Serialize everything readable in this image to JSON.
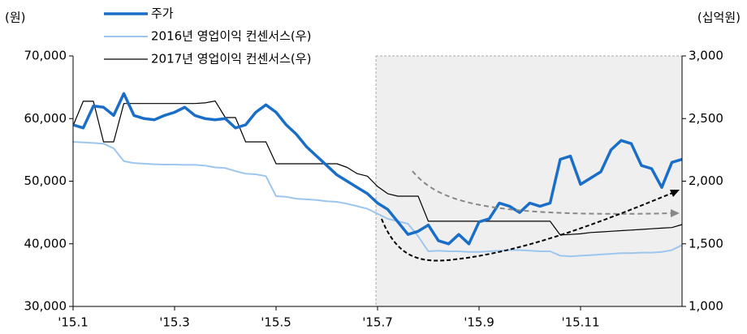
{
  "chart_data": {
    "type": "line",
    "y_unit": "(원)",
    "y2_unit": "(십억원)",
    "categories": [
      "'15.1",
      null,
      null,
      null,
      null,
      null,
      null,
      null,
      null,
      null,
      "'15.3",
      null,
      null,
      null,
      null,
      null,
      null,
      null,
      null,
      null,
      "'15.5",
      null,
      null,
      null,
      null,
      null,
      null,
      null,
      null,
      null,
      "'15.7",
      null,
      null,
      null,
      null,
      null,
      null,
      null,
      null,
      null,
      "'15.9",
      null,
      null,
      null,
      null,
      null,
      null,
      null,
      null,
      null,
      "'15.11",
      null,
      null,
      null,
      null,
      null,
      null,
      null,
      null,
      null,
      null
    ],
    "series": [
      {
        "name": "주가",
        "color": "#1a6ec8",
        "axis": "y",
        "values": [
          59000,
          58500,
          62000,
          61800,
          60500,
          64000,
          60500,
          60000,
          59800,
          60500,
          61000,
          61800,
          60500,
          60000,
          59800,
          60000,
          58500,
          59000,
          61000,
          62200,
          61000,
          59000,
          57500,
          55500,
          54000,
          52500,
          51000,
          50000,
          49000,
          48000,
          46500,
          45500,
          43500,
          41500,
          42000,
          43000,
          40500,
          40000,
          41500,
          40000,
          43500,
          44000,
          46500,
          46000,
          45000,
          46500,
          46000,
          46500,
          53500,
          54000,
          49500,
          50500,
          51500,
          55000,
          56500,
          56000,
          52500,
          52000,
          49000,
          53000,
          53500
        ]
      },
      {
        "name": "2016년 영업이익 컨센서스(우)",
        "color": "#9dc6ee",
        "axis": "y2",
        "values": [
          2314,
          2310,
          2305,
          2300,
          2262,
          2160,
          2145,
          2140,
          2135,
          2133,
          2133,
          2130,
          2130,
          2125,
          2110,
          2105,
          2080,
          2060,
          2055,
          2040,
          1880,
          1875,
          1860,
          1855,
          1850,
          1840,
          1835,
          1820,
          1800,
          1780,
          1740,
          1700,
          1680,
          1660,
          1560,
          1440,
          1445,
          1440,
          1440,
          1435,
          1435,
          1440,
          1445,
          1450,
          1450,
          1445,
          1440,
          1440,
          1405,
          1400,
          1405,
          1410,
          1415,
          1420,
          1425,
          1425,
          1430,
          1430,
          1435,
          1450,
          1490
        ]
      },
      {
        "name": "2017년 영업이익 컨센서스(우)",
        "color": "#000000",
        "axis": "y2",
        "values": [
          2443,
          2638,
          2638,
          2314,
          2314,
          2620,
          2620,
          2620,
          2620,
          2620,
          2620,
          2620,
          2620,
          2625,
          2640,
          2508,
          2508,
          2314,
          2314,
          2314,
          2139,
          2139,
          2139,
          2139,
          2139,
          2139,
          2139,
          2110,
          2060,
          2040,
          1958,
          1900,
          1880,
          1880,
          1880,
          1680,
          1680,
          1680,
          1680,
          1680,
          1680,
          1680,
          1680,
          1680,
          1680,
          1680,
          1680,
          1680,
          1570,
          1575,
          1580,
          1590,
          1595,
          1600,
          1605,
          1610,
          1615,
          1620,
          1625,
          1630,
          1654
        ]
      }
    ],
    "ylim": [
      30000,
      70000
    ],
    "yticks": [
      {
        "value": 30000,
        "label": "30,000"
      },
      {
        "value": 40000,
        "label": "40,000"
      },
      {
        "value": 50000,
        "label": "50,000"
      },
      {
        "value": 60000,
        "label": "60,000"
      },
      {
        "value": 70000,
        "label": "70,000"
      }
    ],
    "y2lim": [
      1000,
      3000
    ],
    "y2ticks": [
      {
        "value": 1000,
        "label": "1,000"
      },
      {
        "value": 1500,
        "label": "1,500"
      },
      {
        "value": 2000,
        "label": "2,000"
      },
      {
        "value": 2500,
        "label": "2,500"
      },
      {
        "value": 3000,
        "label": "3,000"
      }
    ]
  }
}
